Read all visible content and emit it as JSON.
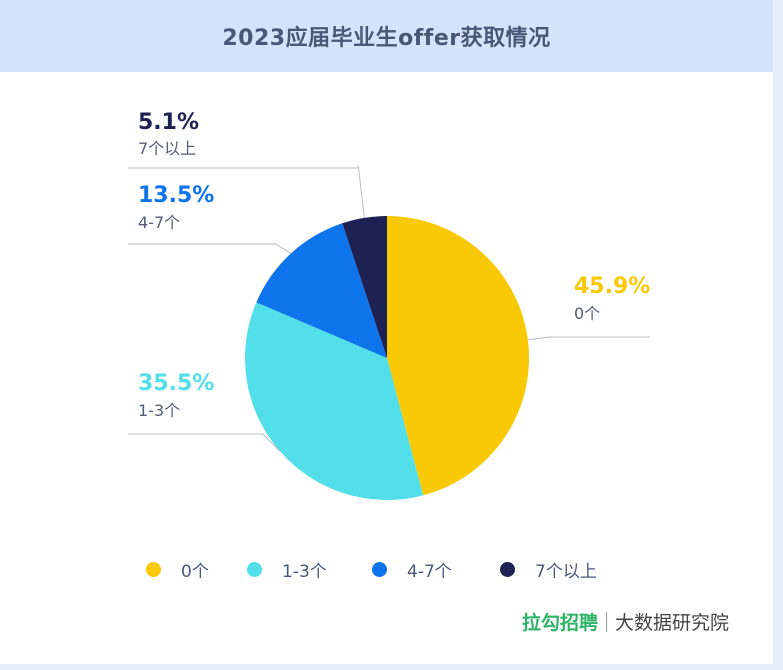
{
  "title": "2023应届毕业生offer获取情况",
  "colors": {
    "slice_0": "#f9c906",
    "slice_1": "#52dfe9",
    "slice_2": "#0e74ec",
    "slice_3": "#1d2153",
    "header_bg": "#d6e4fb",
    "title_text": "#4a5878",
    "brand_green": "#2fb467"
  },
  "chart_data": {
    "type": "pie",
    "title": "2023应届毕业生offer获取情况",
    "categories": [
      "0个",
      "1-3个",
      "4-7个",
      "7个以上"
    ],
    "values": [
      45.9,
      35.5,
      13.5,
      5.1
    ],
    "value_labels": [
      "45.9%",
      "35.5%",
      "13.5%",
      "5.1%"
    ],
    "legend_placement": "bottom"
  },
  "legend": [
    "0个",
    "1-3个",
    "4-7个",
    "7个以上"
  ],
  "footer": {
    "brand": "拉勾招聘",
    "subtitle": "大数据研究院"
  }
}
